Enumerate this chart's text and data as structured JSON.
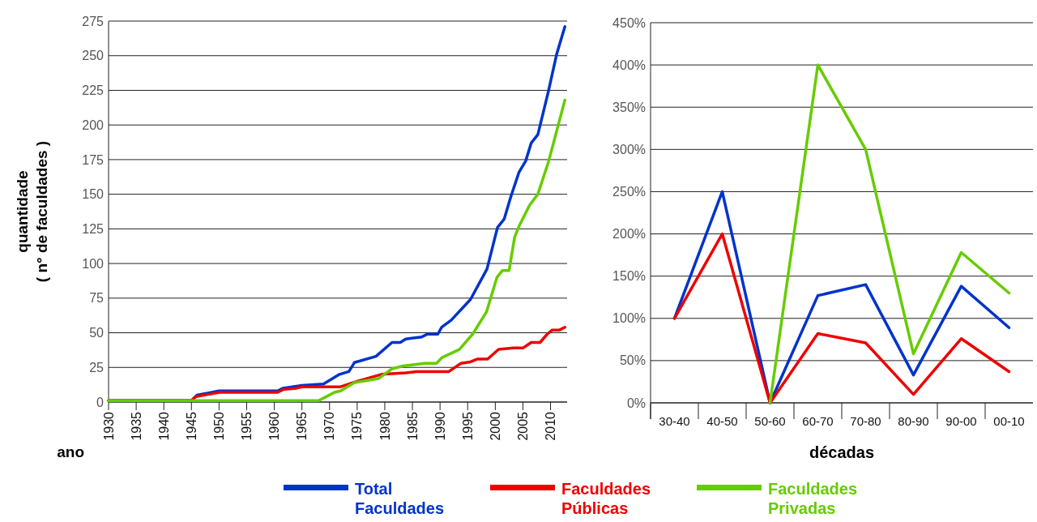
{
  "chart_data": [
    {
      "type": "line",
      "xlabel": "ano",
      "ylabel": "quantidade\n( n° de faculdades )",
      "xlim": [
        1930,
        2013
      ],
      "xticks": [
        1930,
        1935,
        1940,
        1945,
        1950,
        1955,
        1960,
        1965,
        1970,
        1975,
        1980,
        1985,
        1990,
        1995,
        2000,
        2005,
        2010
      ],
      "ylim": [
        0,
        275
      ],
      "yticks": [
        0,
        25,
        50,
        75,
        100,
        125,
        150,
        175,
        200,
        225,
        250,
        275
      ],
      "grid": "y",
      "legend": "bottom",
      "series": [
        {
          "name": "Total Faculdades",
          "color": "#0033cc",
          "x": [
            1930,
            1945,
            1946,
            1948,
            1950,
            1960.6,
            1961.6,
            1965,
            1968.9,
            1971.8,
            1973.5,
            1974.5,
            1978.4,
            1981.3,
            1982.8,
            1983.8,
            1986.7,
            1987.7,
            1989.6,
            1990.3,
            1992,
            1995.5,
            1998.5,
            2000.4,
            2001.6,
            2002.8,
            2004.3,
            2005.5,
            2006.5,
            2007.7,
            2009.6,
            2011.1,
            2012.6
          ],
          "values": [
            1,
            1,
            5,
            6.5,
            8,
            8,
            10,
            12,
            13,
            20,
            22,
            28.5,
            33,
            43,
            43,
            45.5,
            47,
            49,
            49,
            54,
            59,
            74,
            96,
            126,
            132,
            148,
            166,
            174,
            187,
            193,
            224,
            251,
            271
          ]
        },
        {
          "name": "Faculdades Públicas",
          "color": "#ee0000",
          "x": [
            1930,
            1945,
            1945.8,
            1948,
            1950.1,
            1960.6,
            1961.6,
            1964,
            1965,
            1969,
            1972,
            1975,
            1979.4,
            1983.8,
            1985.7,
            1991.6,
            1993.8,
            1995.5,
            1996.7,
            1998.6,
            2000.6,
            2003.3,
            2005,
            2006.5,
            2008.1,
            2009.4,
            2010.3,
            2011.6,
            2012.6
          ],
          "values": [
            1,
            1,
            4,
            5.5,
            7,
            7,
            9,
            10,
            11,
            11,
            11,
            15,
            20,
            21,
            22,
            22,
            28,
            29,
            31,
            31,
            38,
            39,
            39,
            43,
            43,
            49,
            52,
            52,
            54
          ]
        },
        {
          "name": "Faculdades Privadas",
          "color": "#66cc00",
          "x": [
            1930,
            1968,
            1969,
            1970.9,
            1972,
            1974.5,
            1978.9,
            1981.3,
            1983.3,
            1987.2,
            1989.4,
            1990.3,
            1993.5,
            1995.9,
            1998.4,
            2000.3,
            2001.3,
            2002.5,
            2003.5,
            2004.3,
            2006.2,
            2007.7,
            2009.6,
            2012.6
          ],
          "values": [
            1,
            1,
            3,
            7,
            8,
            14,
            17,
            24,
            26,
            28,
            28,
            32,
            38,
            49,
            65,
            90,
            95,
            95,
            119,
            127,
            142,
            150,
            173,
            218
          ]
        }
      ]
    },
    {
      "type": "line",
      "xlabel": "décadas",
      "categories": [
        "30-40",
        "40-50",
        "50-60",
        "60-70",
        "70-80",
        "80-90",
        "90-00",
        "00-10"
      ],
      "ylim": [
        0,
        450
      ],
      "yticks": [
        {
          "value": 0,
          "label": "0%"
        },
        {
          "value": 50,
          "label": "50%"
        },
        {
          "value": 100,
          "label": "100%"
        },
        {
          "value": 150,
          "label": "150%"
        },
        {
          "value": 200,
          "label": "200%"
        },
        {
          "value": 250,
          "label": "250%"
        },
        {
          "value": 300,
          "label": "300%"
        },
        {
          "value": 350,
          "label": "350%"
        },
        {
          "value": 400,
          "label": "400%"
        },
        {
          "value": 450,
          "label": "450%"
        }
      ],
      "grid": "y",
      "series": [
        {
          "color": "#0033cc",
          "values": [
            100,
            250,
            0,
            127,
            140,
            33,
            138,
            89
          ]
        },
        {
          "color": "#ee0000",
          "values": [
            100,
            200,
            0,
            82,
            71,
            10,
            76,
            37
          ]
        },
        {
          "color": "#66cc00",
          "values": [
            null,
            null,
            0,
            400,
            300,
            58,
            178,
            130
          ]
        }
      ]
    }
  ]
}
